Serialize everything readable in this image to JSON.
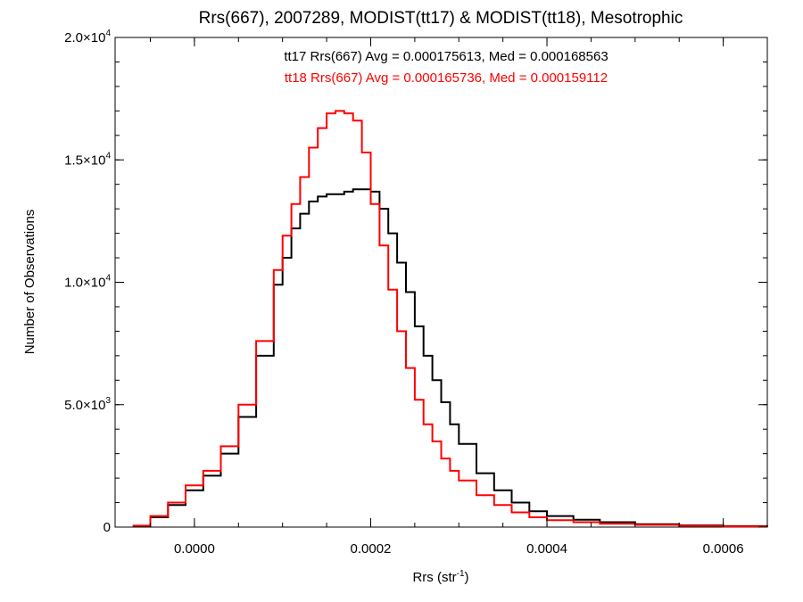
{
  "chart_data": {
    "type": "line",
    "title": "Rrs(667), 2007289, MODIST(tt17) & MODIST(tt18), Mesotrophic",
    "xlabel": {
      "base": "Rrs (str",
      "sup": "-1",
      "tail": ")"
    },
    "ylabel": "Number of Observations",
    "xlim": [
      -9e-05,
      0.00065
    ],
    "ylim": [
      0,
      20000
    ],
    "grid": false,
    "x_ticks": [
      {
        "value": 0.0,
        "label": "0.0000"
      },
      {
        "value": 0.0002,
        "label": "0.0002"
      },
      {
        "value": 0.0004,
        "label": "0.0004"
      },
      {
        "value": 0.0006,
        "label": "0.0006"
      }
    ],
    "x_minor_step": 5e-05,
    "y_ticks": [
      {
        "value": 0,
        "mantissa": "0",
        "exp": ""
      },
      {
        "value": 5000,
        "mantissa": "5.0×10",
        "exp": "3"
      },
      {
        "value": 10000,
        "mantissa": "1.0×10",
        "exp": "4"
      },
      {
        "value": 15000,
        "mantissa": "1.5×10",
        "exp": "4"
      },
      {
        "value": 20000,
        "mantissa": "2.0×10",
        "exp": "4"
      }
    ],
    "y_minor_step": 1000,
    "annotations": [
      {
        "text": "tt17 Rrs(667) Avg = 0.000175613, Med = 0.000168563",
        "color": "#000000"
      },
      {
        "text": "tt18 Rrs(667) Avg = 0.000165736, Med = 0.000159112",
        "color": "#ff0000"
      }
    ],
    "series": [
      {
        "color": "#000000",
        "x": [
          -7e-05,
          -5e-05,
          -3e-05,
          -1e-05,
          1e-05,
          3e-05,
          5e-05,
          7e-05,
          9e-05,
          0.0001,
          0.00011,
          0.00012,
          0.00013,
          0.00014,
          0.00015,
          0.00016,
          0.00017,
          0.00018,
          0.00019,
          0.0002,
          0.00021,
          0.00022,
          0.00023,
          0.00024,
          0.00025,
          0.00026,
          0.00027,
          0.00028,
          0.00029,
          0.0003,
          0.00032,
          0.00034,
          0.00036,
          0.00038,
          0.0004,
          0.00043,
          0.00046,
          0.0005,
          0.00055,
          0.0006,
          0.00065
        ],
        "y": [
          50,
          400,
          900,
          1500,
          2100,
          3000,
          4500,
          7000,
          9900,
          11000,
          12200,
          12800,
          13300,
          13500,
          13600,
          13600,
          13700,
          13800,
          13800,
          13700,
          13000,
          12000,
          10800,
          9600,
          8200,
          7000,
          6000,
          5100,
          4200,
          3400,
          2200,
          1500,
          1000,
          650,
          450,
          300,
          200,
          120,
          70,
          40,
          0
        ]
      },
      {
        "color": "#ff0000",
        "x": [
          -7e-05,
          -5e-05,
          -3e-05,
          -1e-05,
          1e-05,
          3e-05,
          5e-05,
          7e-05,
          9e-05,
          0.0001,
          0.00011,
          0.00012,
          0.00013,
          0.00014,
          0.00015,
          0.00016,
          0.00017,
          0.00018,
          0.00019,
          0.0002,
          0.00021,
          0.00022,
          0.00023,
          0.00024,
          0.00025,
          0.00026,
          0.00027,
          0.00028,
          0.00029,
          0.0003,
          0.00032,
          0.00034,
          0.00036,
          0.00038,
          0.0004,
          0.00043,
          0.00046,
          0.0005,
          0.00055,
          0.0006,
          0.00065
        ],
        "y": [
          60,
          450,
          1000,
          1700,
          2300,
          3300,
          5000,
          7600,
          10500,
          11900,
          13200,
          14300,
          15500,
          16300,
          16900,
          17000,
          16900,
          16600,
          15300,
          13200,
          11500,
          9700,
          8000,
          6500,
          5200,
          4200,
          3500,
          2800,
          2300,
          1900,
          1300,
          900,
          600,
          400,
          280,
          200,
          140,
          90,
          50,
          25,
          0
        ]
      }
    ]
  }
}
